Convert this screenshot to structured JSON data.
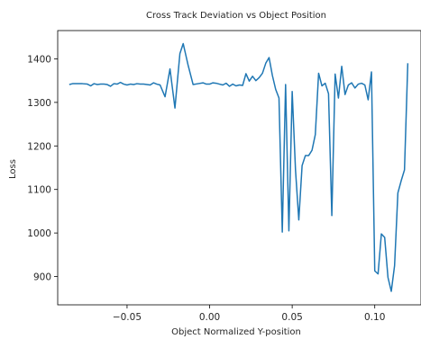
{
  "chart_data": {
    "type": "line",
    "title": "Cross Track Deviation vs Object Position",
    "xlabel": "Object Normalized Y-position",
    "ylabel": "Loss",
    "xlim": [
      -0.092,
      0.128
    ],
    "ylim": [
      835,
      1465
    ],
    "grid": false,
    "legend": "none",
    "x_ticks": [
      -0.05,
      0.0,
      0.05,
      0.1
    ],
    "x_tick_labels": [
      "−0.05",
      "0.00",
      "0.05",
      "0.10"
    ],
    "y_ticks": [
      900,
      1000,
      1100,
      1200,
      1300,
      1400
    ],
    "y_tick_labels": [
      "900",
      "1000",
      "1100",
      "1200",
      "1300",
      "1400"
    ],
    "series": [
      {
        "color": "#1f77b4",
        "x": [
          -0.085,
          -0.083,
          -0.08,
          -0.077,
          -0.074,
          -0.072,
          -0.07,
          -0.068,
          -0.066,
          -0.064,
          -0.062,
          -0.06,
          -0.058,
          -0.056,
          -0.054,
          -0.052,
          -0.05,
          -0.048,
          -0.046,
          -0.044,
          -0.042,
          -0.04,
          -0.038,
          -0.036,
          -0.034,
          -0.032,
          -0.03,
          -0.027,
          -0.024,
          -0.021,
          -0.018,
          -0.016,
          -0.013,
          -0.01,
          -0.007,
          -0.004,
          -0.002,
          0.0,
          0.002,
          0.004,
          0.006,
          0.008,
          0.01,
          0.012,
          0.014,
          0.016,
          0.018,
          0.02,
          0.022,
          0.024,
          0.026,
          0.028,
          0.03,
          0.032,
          0.034,
          0.036,
          0.038,
          0.04,
          0.042,
          0.044,
          0.046,
          0.048,
          0.05,
          0.052,
          0.054,
          0.056,
          0.058,
          0.06,
          0.062,
          0.064,
          0.066,
          0.068,
          0.07,
          0.072,
          0.074,
          0.076,
          0.078,
          0.08,
          0.082,
          0.084,
          0.086,
          0.088,
          0.09,
          0.092,
          0.094,
          0.096,
          0.098,
          0.1,
          0.102,
          0.104,
          0.106,
          0.108,
          0.11,
          0.112,
          0.114,
          0.116,
          0.118,
          0.12
        ],
        "y": [
          1341,
          1343,
          1343,
          1343,
          1342,
          1338,
          1343,
          1341,
          1342,
          1342,
          1341,
          1337,
          1343,
          1342,
          1346,
          1342,
          1340,
          1342,
          1341,
          1343,
          1342,
          1342,
          1341,
          1340,
          1345,
          1342,
          1340,
          1313,
          1377,
          1287,
          1412,
          1435,
          1385,
          1341,
          1343,
          1345,
          1342,
          1342,
          1345,
          1344,
          1342,
          1340,
          1344,
          1337,
          1342,
          1338,
          1340,
          1339,
          1366,
          1349,
          1360,
          1350,
          1357,
          1367,
          1390,
          1403,
          1362,
          1330,
          1310,
          1002,
          1341,
          1005,
          1325,
          1145,
          1030,
          1155,
          1178,
          1178,
          1190,
          1226,
          1367,
          1338,
          1344,
          1320,
          1040,
          1365,
          1310,
          1383,
          1318,
          1340,
          1345,
          1333,
          1342,
          1344,
          1340,
          1306,
          1370,
          913,
          906,
          998,
          990,
          898,
          866,
          925,
          1092,
          1120,
          1145,
          1390
        ]
      }
    ]
  }
}
